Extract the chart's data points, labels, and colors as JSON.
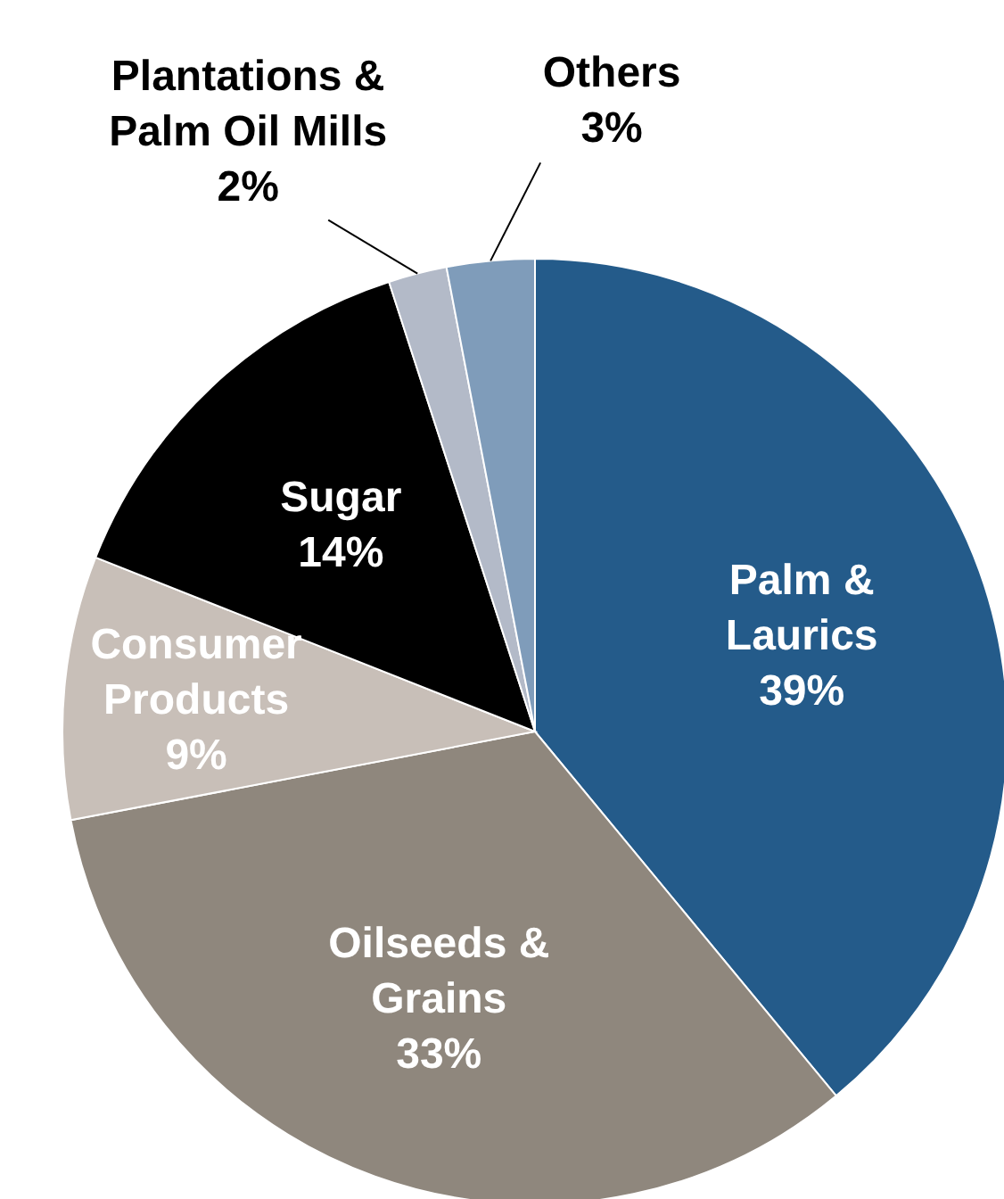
{
  "chart_data": {
    "type": "pie",
    "categories": [
      "Palm & Laurics",
      "Oilseeds & Grains",
      "Consumer Products",
      "Sugar",
      "Plantations & Palm Oil Mills",
      "Others"
    ],
    "values": [
      39,
      33,
      9,
      14,
      2,
      3
    ],
    "value_labels": [
      "39%",
      "33%",
      "9%",
      "14%",
      "2%",
      "3%"
    ],
    "colors": [
      "#245b8a",
      "#8f877d",
      "#c8bfb8",
      "#000000",
      "#b3bac8",
      "#7f9cba"
    ]
  }
}
